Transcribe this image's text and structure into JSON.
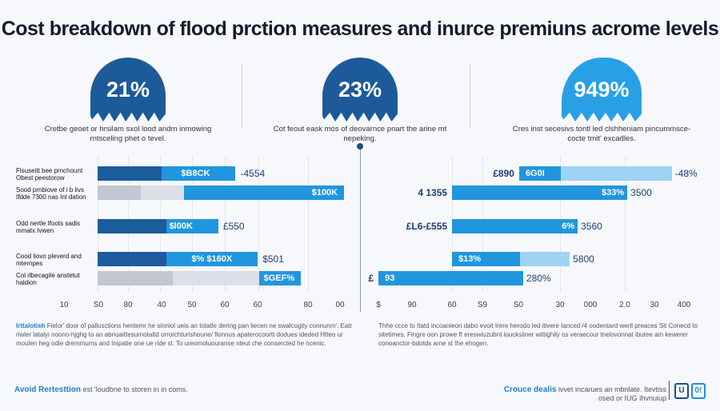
{
  "title": "Cost breakdown of flood prction measures and inurce premiuns acrome levels",
  "stats": [
    {
      "value": "21%",
      "caption": "Cretbe geoet or hrsilam sxol lood andm inmowing rntsceling phet o tevel.",
      "color": "#1d5a9a"
    },
    {
      "value": "23%",
      "caption": "Cot feout eask mos of deovarnce pnart the arine mt nepeking.",
      "color": "#1d5a9a"
    },
    {
      "value": "949%",
      "caption": "Cres inst secesivs tontl led clshheniam pincummsce-cocte tmit' excadles.",
      "color": "#29a0e6"
    }
  ],
  "colors": {
    "dark": "#1c5c9c",
    "blue": "#2196de",
    "grey": "#c3c7d3",
    "lightgrey": "#dcdfe7",
    "lightblue": "#9fd2f3"
  },
  "chart_data": [
    {
      "type": "bar",
      "orientation": "horizontal",
      "stacked": true,
      "row_labels": [
        "Flsuseitt bee prnchount Obest peestorow",
        "Sood prnbiove of i b livs Ifdde 7300 nas Inl dation",
        "Odd nertle Ifoots sadis mmatx Ivwen",
        "Cood liovo pleverd and mternpes",
        "Col rlbecagite anstetut haldion"
      ],
      "tick_labels": [
        "10",
        "S0",
        "80",
        "40",
        "50",
        "60",
        "60",
        "80",
        "00"
      ],
      "xlim": [
        0,
        100
      ],
      "grid": true,
      "rows": [
        {
          "segments": [
            {
              "end": 26,
              "color": "dark"
            },
            {
              "end": 56,
              "color": "blue"
            }
          ],
          "inside": "$B8CK",
          "outside": "-4554"
        },
        {
          "segments": [
            {
              "end": 17.5,
              "color": "grey"
            },
            {
              "end": 35,
              "color": "lightgrey"
            },
            {
              "end": 100,
              "color": "blue"
            }
          ],
          "inside": "$100K",
          "outside": ""
        },
        {
          "segments": [
            {
              "end": 28,
              "color": "dark"
            },
            {
              "end": 49,
              "color": "blue"
            }
          ],
          "inside": "$l00K",
          "outside": "£550"
        },
        {
          "segments": [
            {
              "end": 28,
              "color": "dark"
            },
            {
              "end": 65,
              "color": "blue"
            }
          ],
          "inside": "$%  $160X",
          "outside": "$501"
        },
        {
          "segments": [
            {
              "end": 30.5,
              "color": "grey"
            },
            {
              "end": 65.5,
              "color": "lightgrey"
            },
            {
              "end": 82.5,
              "color": "blue"
            }
          ],
          "inside": "$GEF%",
          "outside": ""
        }
      ]
    },
    {
      "type": "bar",
      "orientation": "horizontal",
      "stacked": true,
      "tick_labels": [
        "$",
        "90",
        "60",
        "S9",
        "S0",
        "30",
        "000",
        "2.0",
        "30",
        "400"
      ],
      "xlim": [
        0,
        100
      ],
      "grid": true,
      "rows": [
        {
          "start": 46.2,
          "segments": [
            {
              "end": 59.8,
              "color": "blue"
            },
            {
              "end": 96,
              "color": "lightblue"
            }
          ],
          "left": "£890",
          "inside": "6G0I",
          "outside": "-48%"
        },
        {
          "start": 24.3,
          "segments": [
            {
              "end": 81.5,
              "color": "blue"
            }
          ],
          "left": "4 1355",
          "inside": "$33%",
          "outside": "3500"
        },
        {
          "start": 24.3,
          "segments": [
            {
              "end": 65.3,
              "color": "blue"
            }
          ],
          "left": "£L6-£555",
          "inside": "6%",
          "outside": "3560"
        },
        {
          "start": 24.3,
          "segments": [
            {
              "end": 46.5,
              "color": "blue"
            },
            {
              "end": 62.7,
              "color": "lightblue"
            }
          ],
          "left": "",
          "inside": "$13%",
          "outside": "5800"
        },
        {
          "start": 0.3,
          "segments": [
            {
              "end": 47.5,
              "color": "blue"
            }
          ],
          "left": "£",
          "inside": "93",
          "outside": "280%"
        }
      ]
    }
  ],
  "notes": {
    "left_lead": "Irttalotish",
    "left": "Fielor' door of pallusctions hentemr he sinniol ueis an totatle dering pan liecen ne swalcugity connunm'. Eatr riwler latalyi noono-hjghg to an abnuaittesurnotaltd orrorchturishoune/ flonnus apaterocoortt dodues ideded Htteo ur moulen heg odie dremmums and Inipatie one ue ride st. To ureomoluouranse nteul che consercted he ncenic.",
    "right": "Thhe ccce to Itatd incoanieon dabo evoit Irere herodo led itivere Ianced /4 oodentard werll preaces Sit Conecd to sitetimes. Fingre oon prowe ft ereswiuzubnt ioucksiiner wittighily os veraecour tnelovonnat ibutee am kewerer conoanctor-bdotds arne st Ihe ehogen."
  },
  "footer": {
    "left_lead": "Avoid Rertesttion",
    "left": "est 'loudbne to storen in in coms.",
    "right_lead": "Crouce dealis",
    "right": "ivvet incarues an mbnlate. Itevtiss osed or IUG Ihvnuiup",
    "icon1": "U",
    "icon2": "0!"
  }
}
